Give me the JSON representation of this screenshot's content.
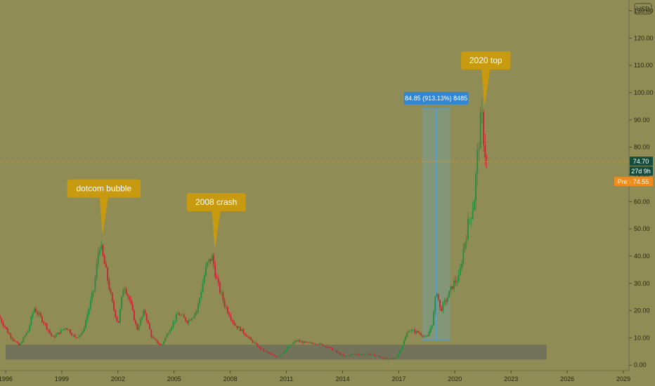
{
  "currency_badge": "USD",
  "colors": {
    "background": "#908c55",
    "up": "#1f8f3a",
    "down": "#c8242f",
    "support_zone": "#6e6e5e",
    "measure_box": "#7f9a84",
    "measure_line": "#4aa3df",
    "measure_label_bg": "#2f86d6",
    "callout_bg": "#c89a10",
    "price_tag_bg": "#124d3e",
    "pre_tag_bg": "#f08c1e",
    "price_line": "#d8a14a"
  },
  "chart_data": {
    "type": "candlestick",
    "x_range": [
      1995.7,
      2029.3
    ],
    "x_ticks": [
      "1996",
      "1999",
      "2002",
      "2005",
      "2008",
      "2011",
      "2014",
      "2017",
      "2020",
      "2023",
      "2026",
      "2029"
    ],
    "y_range": [
      -2,
      134
    ],
    "y_ticks": [
      "0.00",
      "10.00",
      "20.00",
      "30.00",
      "40.00",
      "50.00",
      "60.00",
      "70.00",
      "80.00",
      "90.00",
      "100.00",
      "110.00",
      "120.00",
      "130.00"
    ],
    "anchor_prices": [
      [
        1995.7,
        18
      ],
      [
        1996.3,
        11
      ],
      [
        1996.8,
        7
      ],
      [
        1997.3,
        13
      ],
      [
        1997.6,
        21
      ],
      [
        1998.1,
        16
      ],
      [
        1998.6,
        10
      ],
      [
        1999.3,
        14
      ],
      [
        1999.8,
        10
      ],
      [
        2000.2,
        12
      ],
      [
        2000.8,
        28
      ],
      [
        2001.1,
        45
      ],
      [
        2001.4,
        36
      ],
      [
        2001.8,
        22
      ],
      [
        2002.1,
        15
      ],
      [
        2002.4,
        30
      ],
      [
        2002.7,
        24
      ],
      [
        2003.1,
        13
      ],
      [
        2003.5,
        20
      ],
      [
        2003.9,
        10
      ],
      [
        2004.4,
        7
      ],
      [
        2004.9,
        14
      ],
      [
        2005.3,
        19
      ],
      [
        2005.8,
        16
      ],
      [
        2006.3,
        20
      ],
      [
        2006.8,
        36
      ],
      [
        2007.1,
        40
      ],
      [
        2007.4,
        30
      ],
      [
        2007.8,
        22
      ],
      [
        2008.3,
        15
      ],
      [
        2008.8,
        12
      ],
      [
        2009.2,
        9
      ],
      [
        2009.7,
        6
      ],
      [
        2010.2,
        4
      ],
      [
        2010.6,
        3
      ],
      [
        2011.1,
        6
      ],
      [
        2011.6,
        9
      ],
      [
        2012.2,
        8
      ],
      [
        2012.7,
        8
      ],
      [
        2013.2,
        7
      ],
      [
        2013.7,
        5
      ],
      [
        2014.2,
        3
      ],
      [
        2014.6,
        4
      ],
      [
        2015.1,
        4
      ],
      [
        2015.6,
        4
      ],
      [
        2016.1,
        3
      ],
      [
        2016.5,
        2
      ],
      [
        2016.9,
        2.5
      ],
      [
        2017.2,
        6
      ],
      [
        2017.6,
        13
      ],
      [
        2018.1,
        12
      ],
      [
        2018.6,
        10
      ],
      [
        2018.9,
        16
      ],
      [
        2019.1,
        28
      ],
      [
        2019.3,
        20
      ],
      [
        2019.7,
        25
      ],
      [
        2020.0,
        30
      ],
      [
        2020.3,
        32
      ],
      [
        2020.6,
        45
      ],
      [
        2020.8,
        52
      ],
      [
        2021.1,
        60
      ],
      [
        2021.3,
        78
      ],
      [
        2021.5,
        92
      ],
      [
        2021.6,
        85
      ],
      [
        2021.75,
        74.7
      ]
    ],
    "support_zone": {
      "x_start": 1996.0,
      "x_end": 2024.9,
      "y_low": 2,
      "y_high": 7.5
    },
    "measure_range": {
      "x_start": 2018.25,
      "x_end": 2019.75,
      "y_low": 9.3,
      "y_high": 94.1,
      "label": "84.85 (913.13%) 8485"
    },
    "annotations": [
      {
        "text": "dotcom bubble",
        "x": 2001.1,
        "y": 46
      },
      {
        "text": "2008 crash",
        "x": 2007.1,
        "y": 41
      },
      {
        "text": "2020 top",
        "x": 2021.5,
        "y": 93
      }
    ],
    "last_price": {
      "value": 74.7,
      "label": "74.70",
      "countdown": "27d 9h"
    },
    "pre_market": {
      "value": 74.55,
      "label": "Pre · 74.55"
    }
  }
}
